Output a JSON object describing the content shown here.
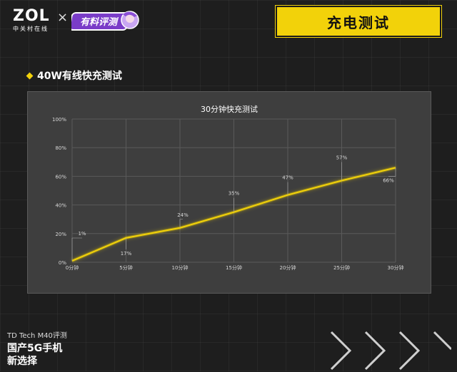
{
  "header": {
    "logo_main": "ZOL",
    "logo_sub": "中关村在线",
    "separator": "×",
    "badge_text": "有料评测",
    "page_title": "充电测试"
  },
  "section": {
    "label": "40W有线快充测试"
  },
  "chart_data": {
    "type": "line",
    "title": "30分钟快充测试",
    "categories": [
      "0分钟",
      "5分钟",
      "10分钟",
      "15分钟",
      "20分钟",
      "25分钟",
      "30分钟"
    ],
    "series": [
      {
        "values": [
          1,
          17,
          24,
          35,
          47,
          57,
          66
        ],
        "color": "#f2d20a"
      }
    ],
    "data_labels": [
      "1%",
      "17%",
      "24%",
      "35%",
      "47%",
      "57%",
      "66%"
    ],
    "ylim": [
      0,
      100
    ],
    "yticks": [
      "0%",
      "20%",
      "40%",
      "60%",
      "80%",
      "100%"
    ],
    "grid": true
  },
  "footer": {
    "model": "TD Tech M40评测",
    "line1": "国产5G手机",
    "line2": "新选择"
  },
  "colors": {
    "accent": "#f2d20a",
    "panel": "#3e3e3e",
    "background": "#1e1e1e"
  }
}
